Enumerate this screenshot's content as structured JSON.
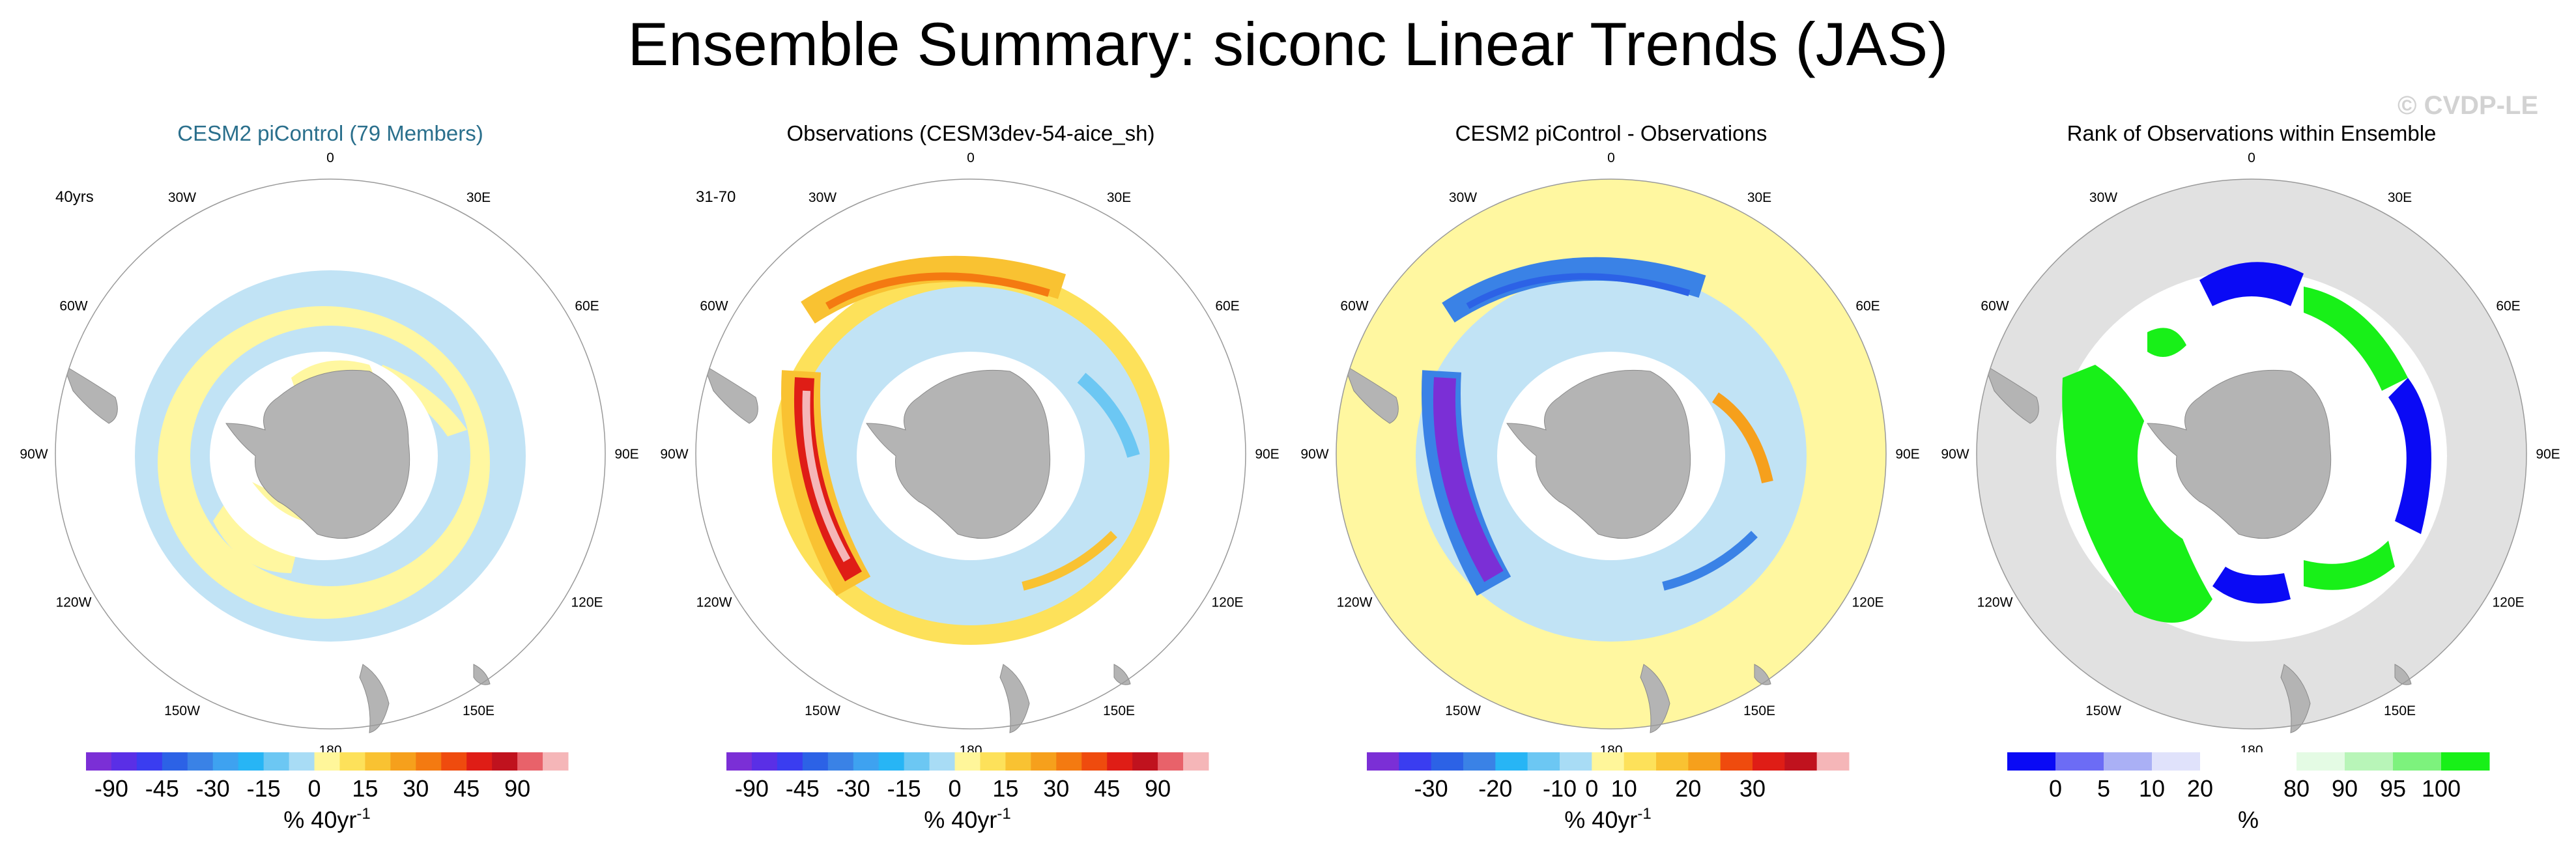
{
  "title": "Ensemble Summary: siconc Linear Trends (JAS)",
  "watermark": "© CVDP-LE",
  "colors": {
    "land": "#b4b4b4",
    "grey_fill": "#e1e1e1",
    "border": "#9a9a9a",
    "lightblue": "#c1e3f5",
    "yellow": "#fff7a0",
    "blue_title": "#2a6f8c"
  },
  "lon_labels": [
    "0",
    "30E",
    "60E",
    "90E",
    "120E",
    "150E",
    "180",
    "150W",
    "120W",
    "90W",
    "60W",
    "30W"
  ],
  "panels": [
    {
      "title": "CESM2 piControl (79 Members)",
      "corner_label": "40yrs",
      "colorbar": {
        "colors": [
          "#7b2fd6",
          "#5a2fe6",
          "#3a3df0",
          "#2c62e6",
          "#3a82e6",
          "#3ea2f0",
          "#27b5f5",
          "#6cc7f3",
          "#a8dcf5",
          "#fff69a",
          "#fde15a",
          "#f9c232",
          "#f6a01c",
          "#f47a11",
          "#ef4b0e",
          "#df1d16",
          "#c0121e",
          "#e8626a",
          "#f5b6b8"
        ],
        "ticks": [
          "-90",
          "-45",
          "-30",
          "-15",
          "0",
          "15",
          "30",
          "45",
          "90"
        ],
        "tick_boundaries": [
          1,
          3,
          5,
          7,
          9,
          11,
          13,
          15,
          17
        ],
        "unit": "% 40yr",
        "unit_sup": "-1"
      }
    },
    {
      "title": "Observations (CESM3dev-54-aice_sh)",
      "corner_label": "31-70",
      "colorbar": {
        "colors": [
          "#7b2fd6",
          "#5a2fe6",
          "#3a3df0",
          "#2c62e6",
          "#3a82e6",
          "#3ea2f0",
          "#27b5f5",
          "#6cc7f3",
          "#a8dcf5",
          "#fff69a",
          "#fde15a",
          "#f9c232",
          "#f6a01c",
          "#f47a11",
          "#ef4b0e",
          "#df1d16",
          "#c0121e",
          "#e8626a",
          "#f5b6b8"
        ],
        "ticks": [
          "-90",
          "-45",
          "-30",
          "-15",
          "0",
          "15",
          "30",
          "45",
          "90"
        ],
        "tick_boundaries": [
          1,
          3,
          5,
          7,
          9,
          11,
          13,
          15,
          17
        ],
        "unit": "% 40yr",
        "unit_sup": "-1"
      }
    },
    {
      "title": "CESM2 piControl - Observations",
      "corner_label": "",
      "colorbar": {
        "colors": [
          "#7b2fd6",
          "#3a3df0",
          "#2c62e6",
          "#3a82e6",
          "#27b5f5",
          "#6cc7f3",
          "#a8dcf5",
          "#fff69a",
          "#fde15a",
          "#f9c232",
          "#f6a01c",
          "#ef4b0e",
          "#df1d16",
          "#c0121e",
          "#f5b6b8"
        ],
        "ticks": [
          "-30",
          "-20",
          "-10",
          "0",
          "10",
          "20",
          "30"
        ],
        "tick_boundaries": [
          2,
          4,
          6,
          7,
          8,
          10,
          12
        ],
        "unit": "% 40yr",
        "unit_sup": "-1"
      }
    },
    {
      "title": "Rank of Observations within Ensemble",
      "corner_label": "",
      "colorbar": {
        "colors": [
          "#0a0af5",
          "#6c6cf5",
          "#aab0f5",
          "#e0e2fb",
          "#ffffff",
          "#ffffff",
          "#e4fbe4",
          "#b8f5b8",
          "#7df27d",
          "#18f018"
        ],
        "ticks": [
          "0",
          "5",
          "10",
          "20",
          "80",
          "90",
          "95",
          "100"
        ],
        "tick_boundaries": [
          1,
          2,
          3,
          4,
          6,
          7,
          8,
          9
        ],
        "unit": "%",
        "unit_sup": ""
      }
    }
  ]
}
